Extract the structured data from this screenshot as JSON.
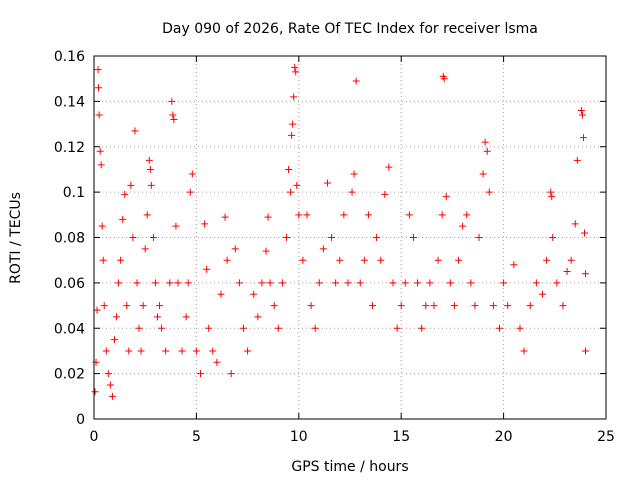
{
  "chart_data": {
    "type": "scatter",
    "title": "Day 090 of 2026, Rate Of TEC Index for receiver lsma",
    "xlabel": "GPS time / hours",
    "ylabel": "ROTI / TECUs",
    "xlim": [
      0,
      25
    ],
    "ylim": [
      0,
      0.16
    ],
    "x_ticks": [
      0,
      5,
      10,
      15,
      20,
      25
    ],
    "y_ticks": [
      0,
      0.02,
      0.04,
      0.06,
      0.08,
      0.1,
      0.12,
      0.14,
      0.16
    ],
    "x_tick_labels": [
      "0",
      "5",
      "10",
      "15",
      "20",
      "25"
    ],
    "y_tick_labels": [
      "0",
      "0.02",
      "0.04",
      "0.06",
      "0.08",
      "0.1",
      "0.12",
      "0.14",
      "0.16"
    ],
    "grid": true,
    "marker": "+",
    "color": "#ff0000",
    "series": [
      {
        "points": [
          [
            0.05,
            0.012
          ],
          [
            0.1,
            0.025
          ],
          [
            0.15,
            0.048
          ],
          [
            0.2,
            0.154
          ],
          [
            0.22,
            0.146
          ],
          [
            0.25,
            0.134
          ],
          [
            0.3,
            0.118
          ],
          [
            0.35,
            0.112
          ],
          [
            0.4,
            0.085
          ],
          [
            0.45,
            0.07
          ],
          [
            0.5,
            0.05
          ],
          [
            0.6,
            0.03
          ],
          [
            0.7,
            0.02
          ],
          [
            0.8,
            0.015
          ],
          [
            0.9,
            0.01
          ],
          [
            1.0,
            0.035
          ],
          [
            1.1,
            0.045
          ],
          [
            1.2,
            0.06
          ],
          [
            1.3,
            0.07
          ],
          [
            1.4,
            0.088
          ],
          [
            1.5,
            0.099
          ],
          [
            1.6,
            0.05
          ],
          [
            1.7,
            0.03
          ],
          [
            1.8,
            0.103
          ],
          [
            1.9,
            0.08
          ],
          [
            2.0,
            0.127
          ],
          [
            2.1,
            0.06
          ],
          [
            2.2,
            0.04
          ],
          [
            2.3,
            0.03
          ],
          [
            2.4,
            0.05
          ],
          [
            2.5,
            0.075
          ],
          [
            2.6,
            0.09
          ],
          [
            2.7,
            0.114
          ],
          [
            2.75,
            0.11
          ],
          [
            2.8,
            0.103
          ],
          [
            2.9,
            0.08
          ],
          [
            3.0,
            0.06
          ],
          [
            3.1,
            0.045
          ],
          [
            3.2,
            0.05
          ],
          [
            3.3,
            0.04
          ],
          [
            3.5,
            0.03
          ],
          [
            3.7,
            0.06
          ],
          [
            3.8,
            0.14
          ],
          [
            3.85,
            0.134
          ],
          [
            3.9,
            0.132
          ],
          [
            4.0,
            0.085
          ],
          [
            4.1,
            0.06
          ],
          [
            4.3,
            0.03
          ],
          [
            4.5,
            0.045
          ],
          [
            4.6,
            0.06
          ],
          [
            4.7,
            0.1
          ],
          [
            4.8,
            0.108
          ],
          [
            5.0,
            0.03
          ],
          [
            5.2,
            0.02
          ],
          [
            5.4,
            0.086
          ],
          [
            5.5,
            0.066
          ],
          [
            5.6,
            0.04
          ],
          [
            5.8,
            0.03
          ],
          [
            6.0,
            0.025
          ],
          [
            6.2,
            0.055
          ],
          [
            6.4,
            0.089
          ],
          [
            6.5,
            0.07
          ],
          [
            6.7,
            0.02
          ],
          [
            6.9,
            0.075
          ],
          [
            7.1,
            0.06
          ],
          [
            7.3,
            0.04
          ],
          [
            7.5,
            0.03
          ],
          [
            7.8,
            0.055
          ],
          [
            8.0,
            0.045
          ],
          [
            8.2,
            0.06
          ],
          [
            8.4,
            0.074
          ],
          [
            8.5,
            0.089
          ],
          [
            8.6,
            0.06
          ],
          [
            8.8,
            0.05
          ],
          [
            9.0,
            0.04
          ],
          [
            9.2,
            0.06
          ],
          [
            9.4,
            0.08
          ],
          [
            9.5,
            0.11
          ],
          [
            9.6,
            0.1
          ],
          [
            9.65,
            0.125
          ],
          [
            9.7,
            0.13
          ],
          [
            9.75,
            0.142
          ],
          [
            9.8,
            0.155
          ],
          [
            9.85,
            0.153
          ],
          [
            9.9,
            0.103
          ],
          [
            10.0,
            0.09
          ],
          [
            10.2,
            0.07
          ],
          [
            10.4,
            0.09
          ],
          [
            10.6,
            0.05
          ],
          [
            10.8,
            0.04
          ],
          [
            11.0,
            0.06
          ],
          [
            11.2,
            0.075
          ],
          [
            11.4,
            0.104
          ],
          [
            11.6,
            0.08
          ],
          [
            11.8,
            0.06
          ],
          [
            12.0,
            0.07
          ],
          [
            12.2,
            0.09
          ],
          [
            12.4,
            0.06
          ],
          [
            12.6,
            0.1
          ],
          [
            12.7,
            0.108
          ],
          [
            12.8,
            0.149
          ],
          [
            13.0,
            0.06
          ],
          [
            13.2,
            0.07
          ],
          [
            13.4,
            0.09
          ],
          [
            13.6,
            0.05
          ],
          [
            13.8,
            0.08
          ],
          [
            14.0,
            0.07
          ],
          [
            14.2,
            0.099
          ],
          [
            14.4,
            0.111
          ],
          [
            14.6,
            0.06
          ],
          [
            14.8,
            0.04
          ],
          [
            15.0,
            0.05
          ],
          [
            15.2,
            0.06
          ],
          [
            15.4,
            0.09
          ],
          [
            15.6,
            0.08
          ],
          [
            15.8,
            0.06
          ],
          [
            16.0,
            0.04
          ],
          [
            16.2,
            0.05
          ],
          [
            16.4,
            0.06
          ],
          [
            16.6,
            0.05
          ],
          [
            16.8,
            0.07
          ],
          [
            17.0,
            0.09
          ],
          [
            17.05,
            0.151
          ],
          [
            17.1,
            0.15
          ],
          [
            17.2,
            0.098
          ],
          [
            17.4,
            0.06
          ],
          [
            17.6,
            0.05
          ],
          [
            17.8,
            0.07
          ],
          [
            18.0,
            0.085
          ],
          [
            18.2,
            0.09
          ],
          [
            18.4,
            0.06
          ],
          [
            18.6,
            0.05
          ],
          [
            18.8,
            0.08
          ],
          [
            19.0,
            0.108
          ],
          [
            19.1,
            0.122
          ],
          [
            19.2,
            0.118
          ],
          [
            19.3,
            0.1
          ],
          [
            19.5,
            0.05
          ],
          [
            19.8,
            0.04
          ],
          [
            20.0,
            0.06
          ],
          [
            20.2,
            0.05
          ],
          [
            20.5,
            0.068
          ],
          [
            20.8,
            0.04
          ],
          [
            21.0,
            0.03
          ],
          [
            21.3,
            0.05
          ],
          [
            21.6,
            0.06
          ],
          [
            21.9,
            0.055
          ],
          [
            22.1,
            0.07
          ],
          [
            22.3,
            0.1
          ],
          [
            22.35,
            0.098
          ],
          [
            22.4,
            0.08
          ],
          [
            22.6,
            0.06
          ],
          [
            22.9,
            0.05
          ],
          [
            23.1,
            0.065
          ],
          [
            23.3,
            0.07
          ],
          [
            23.5,
            0.086
          ],
          [
            23.6,
            0.114
          ],
          [
            23.8,
            0.136
          ],
          [
            23.85,
            0.134
          ],
          [
            23.9,
            0.124
          ],
          [
            23.95,
            0.082
          ],
          [
            24.0,
            0.064
          ],
          [
            24.0,
            0.03
          ]
        ]
      }
    ]
  }
}
